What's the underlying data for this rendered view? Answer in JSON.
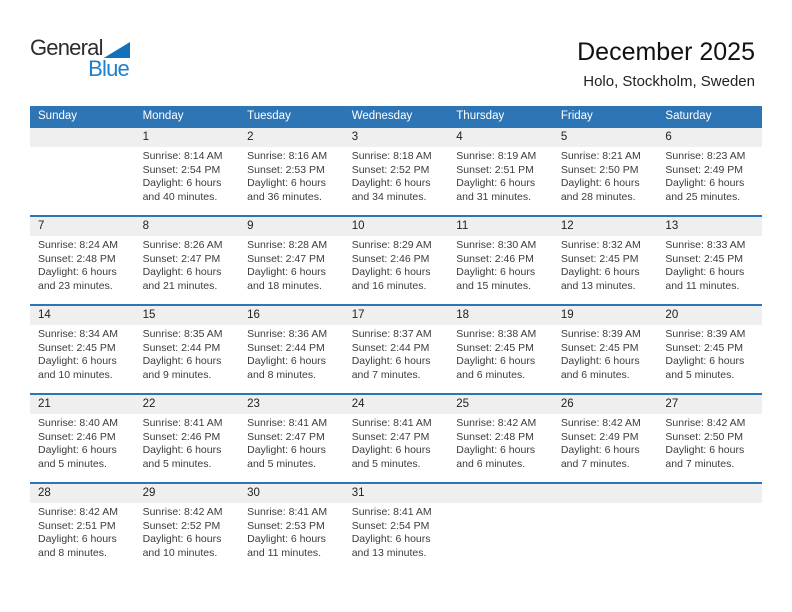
{
  "logo": {
    "part1": "General",
    "part2": "Blue"
  },
  "header": {
    "title": "December 2025",
    "subtitle": "Holo, Stockholm, Sweden"
  },
  "colors": {
    "header_blue": "#2e75b6",
    "week_separator_blue": "#2e75b6",
    "day_band_gray": "#efefef",
    "logo_blue": "#1b80ce",
    "logo_black": "#2d2d2f"
  },
  "calendar": {
    "day_headers": [
      "Sunday",
      "Monday",
      "Tuesday",
      "Wednesday",
      "Thursday",
      "Friday",
      "Saturday"
    ],
    "weeks": [
      [
        null,
        {
          "day": "1",
          "sunrise": "Sunrise: 8:14 AM",
          "sunset": "Sunset: 2:54 PM",
          "daylight": "Daylight: 6 hours and 40 minutes."
        },
        {
          "day": "2",
          "sunrise": "Sunrise: 8:16 AM",
          "sunset": "Sunset: 2:53 PM",
          "daylight": "Daylight: 6 hours and 36 minutes."
        },
        {
          "day": "3",
          "sunrise": "Sunrise: 8:18 AM",
          "sunset": "Sunset: 2:52 PM",
          "daylight": "Daylight: 6 hours and 34 minutes."
        },
        {
          "day": "4",
          "sunrise": "Sunrise: 8:19 AM",
          "sunset": "Sunset: 2:51 PM",
          "daylight": "Daylight: 6 hours and 31 minutes."
        },
        {
          "day": "5",
          "sunrise": "Sunrise: 8:21 AM",
          "sunset": "Sunset: 2:50 PM",
          "daylight": "Daylight: 6 hours and 28 minutes."
        },
        {
          "day": "6",
          "sunrise": "Sunrise: 8:23 AM",
          "sunset": "Sunset: 2:49 PM",
          "daylight": "Daylight: 6 hours and 25 minutes."
        }
      ],
      [
        {
          "day": "7",
          "sunrise": "Sunrise: 8:24 AM",
          "sunset": "Sunset: 2:48 PM",
          "daylight": "Daylight: 6 hours and 23 minutes."
        },
        {
          "day": "8",
          "sunrise": "Sunrise: 8:26 AM",
          "sunset": "Sunset: 2:47 PM",
          "daylight": "Daylight: 6 hours and 21 minutes."
        },
        {
          "day": "9",
          "sunrise": "Sunrise: 8:28 AM",
          "sunset": "Sunset: 2:47 PM",
          "daylight": "Daylight: 6 hours and 18 minutes."
        },
        {
          "day": "10",
          "sunrise": "Sunrise: 8:29 AM",
          "sunset": "Sunset: 2:46 PM",
          "daylight": "Daylight: 6 hours and 16 minutes."
        },
        {
          "day": "11",
          "sunrise": "Sunrise: 8:30 AM",
          "sunset": "Sunset: 2:46 PM",
          "daylight": "Daylight: 6 hours and 15 minutes."
        },
        {
          "day": "12",
          "sunrise": "Sunrise: 8:32 AM",
          "sunset": "Sunset: 2:45 PM",
          "daylight": "Daylight: 6 hours and 13 minutes."
        },
        {
          "day": "13",
          "sunrise": "Sunrise: 8:33 AM",
          "sunset": "Sunset: 2:45 PM",
          "daylight": "Daylight: 6 hours and 11 minutes."
        }
      ],
      [
        {
          "day": "14",
          "sunrise": "Sunrise: 8:34 AM",
          "sunset": "Sunset: 2:45 PM",
          "daylight": "Daylight: 6 hours and 10 minutes."
        },
        {
          "day": "15",
          "sunrise": "Sunrise: 8:35 AM",
          "sunset": "Sunset: 2:44 PM",
          "daylight": "Daylight: 6 hours and 9 minutes."
        },
        {
          "day": "16",
          "sunrise": "Sunrise: 8:36 AM",
          "sunset": "Sunset: 2:44 PM",
          "daylight": "Daylight: 6 hours and 8 minutes."
        },
        {
          "day": "17",
          "sunrise": "Sunrise: 8:37 AM",
          "sunset": "Sunset: 2:44 PM",
          "daylight": "Daylight: 6 hours and 7 minutes."
        },
        {
          "day": "18",
          "sunrise": "Sunrise: 8:38 AM",
          "sunset": "Sunset: 2:45 PM",
          "daylight": "Daylight: 6 hours and 6 minutes."
        },
        {
          "day": "19",
          "sunrise": "Sunrise: 8:39 AM",
          "sunset": "Sunset: 2:45 PM",
          "daylight": "Daylight: 6 hours and 6 minutes."
        },
        {
          "day": "20",
          "sunrise": "Sunrise: 8:39 AM",
          "sunset": "Sunset: 2:45 PM",
          "daylight": "Daylight: 6 hours and 5 minutes."
        }
      ],
      [
        {
          "day": "21",
          "sunrise": "Sunrise: 8:40 AM",
          "sunset": "Sunset: 2:46 PM",
          "daylight": "Daylight: 6 hours and 5 minutes."
        },
        {
          "day": "22",
          "sunrise": "Sunrise: 8:41 AM",
          "sunset": "Sunset: 2:46 PM",
          "daylight": "Daylight: 6 hours and 5 minutes."
        },
        {
          "day": "23",
          "sunrise": "Sunrise: 8:41 AM",
          "sunset": "Sunset: 2:47 PM",
          "daylight": "Daylight: 6 hours and 5 minutes."
        },
        {
          "day": "24",
          "sunrise": "Sunrise: 8:41 AM",
          "sunset": "Sunset: 2:47 PM",
          "daylight": "Daylight: 6 hours and 5 minutes."
        },
        {
          "day": "25",
          "sunrise": "Sunrise: 8:42 AM",
          "sunset": "Sunset: 2:48 PM",
          "daylight": "Daylight: 6 hours and 6 minutes."
        },
        {
          "day": "26",
          "sunrise": "Sunrise: 8:42 AM",
          "sunset": "Sunset: 2:49 PM",
          "daylight": "Daylight: 6 hours and 7 minutes."
        },
        {
          "day": "27",
          "sunrise": "Sunrise: 8:42 AM",
          "sunset": "Sunset: 2:50 PM",
          "daylight": "Daylight: 6 hours and 7 minutes."
        }
      ],
      [
        {
          "day": "28",
          "sunrise": "Sunrise: 8:42 AM",
          "sunset": "Sunset: 2:51 PM",
          "daylight": "Daylight: 6 hours and 8 minutes."
        },
        {
          "day": "29",
          "sunrise": "Sunrise: 8:42 AM",
          "sunset": "Sunset: 2:52 PM",
          "daylight": "Daylight: 6 hours and 10 minutes."
        },
        {
          "day": "30",
          "sunrise": "Sunrise: 8:41 AM",
          "sunset": "Sunset: 2:53 PM",
          "daylight": "Daylight: 6 hours and 11 minutes."
        },
        {
          "day": "31",
          "sunrise": "Sunrise: 8:41 AM",
          "sunset": "Sunset: 2:54 PM",
          "daylight": "Daylight: 6 hours and 13 minutes."
        },
        null,
        null,
        null
      ]
    ]
  }
}
